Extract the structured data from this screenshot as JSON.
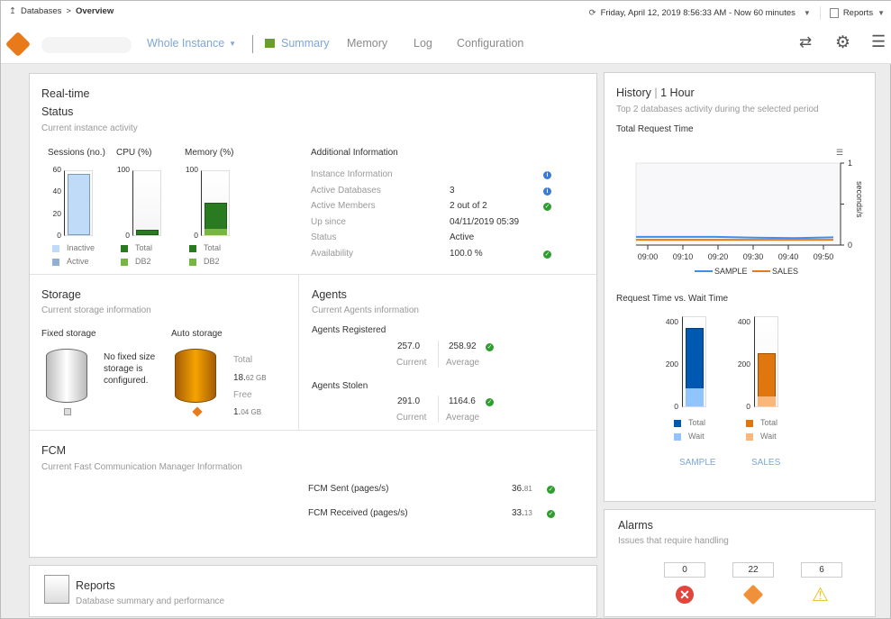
{
  "breadcrumb": {
    "root": "Databases",
    "separator": ">",
    "current": "Overview"
  },
  "time": {
    "label": "Friday, April 12, 2019 8:56:33 AM - Now 60 minutes"
  },
  "reports_menu": "Reports",
  "nav": {
    "scope": "Whole Instance",
    "tabs": [
      {
        "label": "Summary",
        "active": true
      },
      {
        "label": "Memory"
      },
      {
        "label": "Log"
      },
      {
        "label": "Configuration"
      }
    ]
  },
  "realtime": {
    "title": "Real-time",
    "status_title": "Status",
    "status_sub": "Current instance activity",
    "sessions": {
      "title": "Sessions (no.)",
      "ticks": [
        "60",
        "40",
        "20",
        "0"
      ],
      "max": 60,
      "inactive": 56,
      "active": 0,
      "legend": [
        "Inactive",
        "Active"
      ],
      "colors": [
        "#bfdbf7",
        "#8fb0d0"
      ]
    },
    "cpu": {
      "title": "CPU (%)",
      "ticks": [
        "100",
        "0"
      ],
      "max": 100,
      "total": 8,
      "db2": 0,
      "legend": [
        "Total",
        "DB2"
      ],
      "colors": [
        "#2a7a22",
        "#77b640"
      ]
    },
    "memory": {
      "title": "Memory (%)",
      "ticks": [
        "100",
        "0"
      ],
      "max": 100,
      "total": 50,
      "db2": 10,
      "legend": [
        "Total",
        "DB2"
      ],
      "colors": [
        "#2a7a22",
        "#77b640"
      ]
    },
    "additional": {
      "title": "Additional Information",
      "rows": [
        {
          "label": "Instance Information",
          "value": "",
          "icon": "info"
        },
        {
          "label": "Active Databases",
          "value": "3",
          "icon": "info"
        },
        {
          "label": "Active Members",
          "value": "2 out of 2",
          "icon": "check"
        },
        {
          "label": "Up since",
          "value": "04/11/2019 05:39",
          "icon": ""
        },
        {
          "label": "Status",
          "value": "Active",
          "icon": ""
        },
        {
          "label": "Availability",
          "value": "100.0 %",
          "icon": "check"
        }
      ]
    }
  },
  "storage": {
    "title": "Storage",
    "sub": "Current storage information",
    "fixed_title": "Fixed storage",
    "fixed_msg": "No fixed size storage is configured.",
    "auto_title": "Auto storage",
    "total_label": "Total",
    "total_int": "18.",
    "total_dec": "62 GB",
    "free_label": "Free",
    "free_int": "1.",
    "free_dec": "04 GB"
  },
  "agents": {
    "title": "Agents",
    "sub": "Current Agents information",
    "registered": {
      "label": "Agents Registered",
      "current": "257.0",
      "average": "258.92"
    },
    "stolen": {
      "label": "Agents Stolen",
      "current": "291.0",
      "average": "1164.6"
    },
    "current_label": "Current",
    "average_label": "Average"
  },
  "fcm": {
    "title": "FCM",
    "sub": "Current Fast Communication Manager Information",
    "rows": [
      {
        "label": "FCM Sent (pages/s)",
        "int": "36.",
        "dec": "81"
      },
      {
        "label": "FCM Received (pages/s)",
        "int": "33.",
        "dec": "13"
      }
    ]
  },
  "reports": {
    "title": "Reports",
    "sub": "Database summary and performance"
  },
  "history": {
    "title": "History",
    "period": "1 Hour",
    "sub": "Top 2 databases activity during the selected period",
    "total_title": "Total Request Time",
    "rvw_title": "Request Time vs. Wait Time"
  },
  "chart_data": [
    {
      "type": "line",
      "title": "Total Request Time",
      "ylabel": "seconds/s",
      "ylim": [
        0,
        1
      ],
      "yticks": [
        "0",
        "1"
      ],
      "categories": [
        "09:00",
        "09:10",
        "09:20",
        "09:30",
        "09:40",
        "09:50"
      ],
      "series": [
        {
          "name": "SAMPLE",
          "color": "#3d8fe8",
          "values": [
            0.1,
            0.1,
            0.1,
            0.09,
            0.085,
            0.095
          ]
        },
        {
          "name": "SALES",
          "color": "#e87a1a",
          "values": [
            0.065,
            0.065,
            0.065,
            0.065,
            0.065,
            0.065
          ]
        }
      ]
    },
    {
      "type": "bar",
      "title": "Request Time vs. Wait Time",
      "ylim": [
        0,
        430
      ],
      "yticks": [
        "400",
        "200",
        "0"
      ],
      "categories": [
        "SAMPLE",
        "SALES"
      ],
      "series": [
        {
          "name": "Total",
          "values": [
            370,
            250
          ],
          "colors": [
            "#0058b0",
            "#e0760e"
          ]
        },
        {
          "name": "Wait",
          "values": [
            85,
            45
          ],
          "colors": [
            "#90c4fb",
            "#fbb77a"
          ]
        }
      ]
    }
  ],
  "alarms": {
    "title": "Alarms",
    "sub": "Issues that require handling",
    "counts": [
      {
        "value": "0",
        "type": "critical"
      },
      {
        "value": "22",
        "type": "major"
      },
      {
        "value": "6",
        "type": "warning"
      }
    ]
  }
}
